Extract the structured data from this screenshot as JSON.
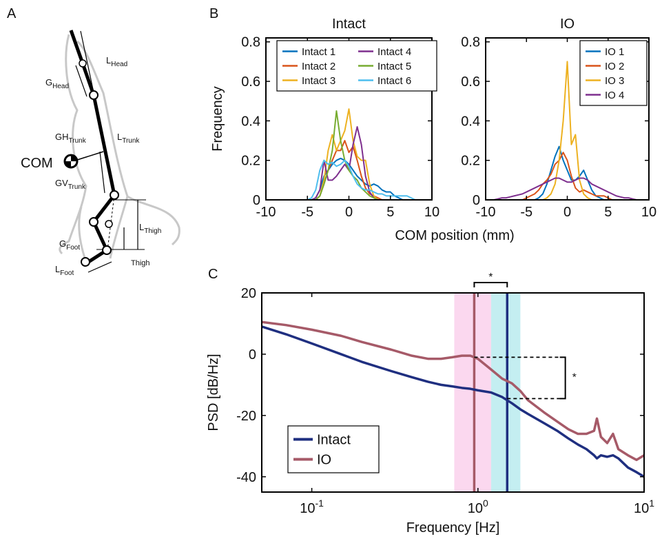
{
  "panels": [
    "A",
    "B",
    "C"
  ],
  "diagram": {
    "labels": [
      {
        "main": "L",
        "sub": "Head"
      },
      {
        "main": "G",
        "sub": "Head"
      },
      {
        "main": "L",
        "sub": "Trunk"
      },
      {
        "main": "GH",
        "sub": "Trunk"
      },
      {
        "main": "COM"
      },
      {
        "main": "GV",
        "sub": "Trunk"
      },
      {
        "main": "L",
        "sub": "Thigh"
      },
      {
        "main": "G",
        "sub": "Foot"
      },
      {
        "main": "L",
        "sub": "Foot"
      },
      {
        "main": "Thigh"
      }
    ]
  },
  "chart_data": [
    {
      "type": "line",
      "title": "Intact",
      "ylabel": "Frequency",
      "xlabel": "COM position (mm)",
      "x": [
        -5,
        -4.5,
        -4,
        -3.5,
        -3,
        -2.5,
        -2,
        -1.5,
        -1,
        -0.5,
        0,
        0.5,
        1,
        1.5,
        2,
        2.5,
        3,
        3.5,
        4,
        4.5,
        5,
        5.5,
        6,
        6.5,
        7,
        7.5,
        8
      ],
      "series": [
        {
          "name": "Intact 1",
          "color": "#0072bd",
          "values": [
            0,
            0,
            0.01,
            0.05,
            0.12,
            0.15,
            0.18,
            0.2,
            0.21,
            0.2,
            0.18,
            0.15,
            0.12,
            0.1,
            0.08,
            0.07,
            0.08,
            0.07,
            0.05,
            0.04,
            0.04,
            0.02,
            0.01,
            0,
            0,
            0,
            0
          ]
        },
        {
          "name": "Intact 2",
          "color": "#d95319",
          "values": [
            0,
            0,
            0,
            0.02,
            0.08,
            0.15,
            0.2,
            0.25,
            0.25,
            0.3,
            0.24,
            0.27,
            0.2,
            0.12,
            0.06,
            0.03,
            0.02,
            0.01,
            0,
            0,
            0,
            0,
            0,
            0,
            0,
            0,
            0
          ]
        },
        {
          "name": "Intact 3",
          "color": "#edb120",
          "values": [
            0,
            0,
            0,
            0.02,
            0.1,
            0.25,
            0.33,
            0.25,
            0.3,
            0.35,
            0.46,
            0.3,
            0.22,
            0.2,
            0.2,
            0.08,
            0.02,
            0,
            0,
            0,
            0,
            0,
            0,
            0,
            0,
            0,
            0
          ]
        },
        {
          "name": "Intact 4",
          "color": "#7e2f8e",
          "values": [
            0,
            0,
            0.01,
            0.05,
            0.2,
            0.1,
            0.1,
            0.12,
            0.15,
            0.18,
            0.15,
            0.28,
            0.37,
            0.28,
            0.12,
            0.04,
            0.01,
            0,
            0,
            0,
            0,
            0,
            0,
            0,
            0,
            0,
            0
          ]
        },
        {
          "name": "Intact 5",
          "color": "#77ac30",
          "values": [
            0,
            0,
            0,
            0.02,
            0.08,
            0.15,
            0.25,
            0.45,
            0.3,
            0.2,
            0.15,
            0.12,
            0.1,
            0.06,
            0.04,
            0.02,
            0.01,
            0,
            0,
            0,
            0,
            0,
            0,
            0,
            0,
            0,
            0
          ]
        },
        {
          "name": "Intact 6",
          "color": "#4dbeee",
          "values": [
            0,
            0.01,
            0.05,
            0.15,
            0.2,
            0.18,
            0.19,
            0.17,
            0.18,
            0.2,
            0.17,
            0.12,
            0.08,
            0.06,
            0.05,
            0.05,
            0.04,
            0.03,
            0.03,
            0.02,
            0.02,
            0.02,
            0.02,
            0.02,
            0.02,
            0.01,
            0
          ]
        }
      ],
      "xlim": [
        -10,
        10
      ],
      "xticks": [
        -10,
        -5,
        0,
        5,
        10
      ],
      "ylim": [
        0,
        0.82
      ],
      "yticks": [
        0,
        0.2,
        0.4,
        0.6,
        0.8
      ],
      "legend": "upper left",
      "legend_columns": 2
    },
    {
      "type": "line",
      "title": "IO",
      "x": [
        -9,
        -8.5,
        -8,
        -7.5,
        -7,
        -6.5,
        -6,
        -5.5,
        -5,
        -4.5,
        -4,
        -3.5,
        -3,
        -2.5,
        -2,
        -1.5,
        -1,
        -0.5,
        0,
        0.5,
        1,
        1.5,
        2,
        2.5,
        3,
        3.5,
        4,
        4.5,
        5,
        5.5,
        6,
        6.5,
        7,
        7.5,
        8,
        8.5,
        9
      ],
      "series": [
        {
          "name": "IO 1",
          "color": "#0072bd",
          "values": [
            0,
            0,
            0,
            0,
            0,
            0,
            0,
            0,
            0,
            0,
            0,
            0.01,
            0.03,
            0.08,
            0.15,
            0.22,
            0.27,
            0.2,
            0.15,
            0.1,
            0.1,
            0.12,
            0.15,
            0.1,
            0.05,
            0.02,
            0.01,
            0,
            0,
            0,
            0,
            0,
            0,
            0,
            0,
            0,
            0
          ]
        },
        {
          "name": "IO 2",
          "color": "#d95319",
          "values": [
            0,
            0,
            0,
            0,
            0,
            0,
            0,
            0,
            0.01,
            0.02,
            0.03,
            0.05,
            0.08,
            0.1,
            0.13,
            0.18,
            0.2,
            0.24,
            0.2,
            0.12,
            0.06,
            0.04,
            0.05,
            0.04,
            0.03,
            0.02,
            0.02,
            0.02,
            0.01,
            0,
            0,
            0,
            0,
            0,
            0,
            0,
            0
          ]
        },
        {
          "name": "IO 3",
          "color": "#edb120",
          "values": [
            0,
            0,
            0,
            0,
            0,
            0,
            0,
            0,
            0,
            0,
            0,
            0,
            0,
            0.01,
            0.03,
            0.08,
            0.2,
            0.4,
            0.7,
            0.28,
            0.33,
            0.1,
            0.03,
            0.01,
            0,
            0,
            0,
            0,
            0,
            0,
            0,
            0,
            0,
            0,
            0,
            0,
            0
          ]
        },
        {
          "name": "IO 4",
          "color": "#7e2f8e",
          "values": [
            0,
            0.005,
            0.01,
            0.01,
            0.015,
            0.02,
            0.025,
            0.03,
            0.04,
            0.05,
            0.06,
            0.07,
            0.08,
            0.09,
            0.1,
            0.11,
            0.11,
            0.1,
            0.09,
            0.09,
            0.1,
            0.11,
            0.11,
            0.1,
            0.08,
            0.07,
            0.06,
            0.05,
            0.04,
            0.03,
            0.02,
            0.015,
            0.01,
            0.01,
            0.005,
            0,
            0
          ]
        }
      ],
      "xlim": [
        -10,
        10
      ],
      "xticks": [
        -10,
        -5,
        0,
        5,
        10
      ],
      "ylim": [
        0,
        0.82
      ],
      "yticks": [
        0,
        0.2,
        0.4,
        0.6,
        0.8
      ],
      "legend": "upper right",
      "legend_columns": 1
    },
    {
      "type": "line",
      "xlabel": "Frequency [Hz]",
      "ylabel": "PSD [dB/Hz]",
      "xscale": "log",
      "x": [
        0.05,
        0.07,
        0.1,
        0.15,
        0.2,
        0.3,
        0.4,
        0.5,
        0.6,
        0.7,
        0.8,
        0.9,
        1,
        1.2,
        1.4,
        1.6,
        1.8,
        2,
        2.5,
        3,
        3.5,
        4,
        4.5,
        5,
        5.2,
        5.5,
        6,
        6.5,
        7,
        8,
        9,
        10
      ],
      "series": [
        {
          "name": "Intact",
          "color": "#1f2f80",
          "values": [
            9,
            6.5,
            3.5,
            0,
            -2.5,
            -5.5,
            -7.5,
            -9,
            -10,
            -10.5,
            -11,
            -11.3,
            -11.8,
            -12.5,
            -14,
            -16,
            -18,
            -19.5,
            -22.5,
            -25,
            -27.5,
            -29.5,
            -31,
            -33,
            -34,
            -33,
            -33.5,
            -33,
            -34,
            -37,
            -38.5,
            -40
          ]
        },
        {
          "name": "IO",
          "color": "#a65a68",
          "values": [
            10.5,
            9.5,
            8,
            6,
            4,
            1.5,
            -0.5,
            -1.5,
            -1.5,
            -1,
            -0.5,
            -0.5,
            -1.5,
            -5,
            -8,
            -9.5,
            -12,
            -15,
            -19,
            -22,
            -24.5,
            -26,
            -26,
            -25,
            -21,
            -27,
            -29,
            -26,
            -31,
            -33,
            -34.5,
            -33
          ]
        }
      ],
      "bands": [
        {
          "xlim": [
            0.72,
            1.2
          ],
          "color": "#fbd8ef"
        },
        {
          "xlim": [
            1.2,
            1.8
          ],
          "color": "#c4eef1"
        }
      ],
      "vlines": [
        {
          "x": 0.95,
          "color": "#a65a68"
        },
        {
          "x": 1.5,
          "color": "#1f2f80"
        }
      ],
      "hlines": [
        {
          "y": -1,
          "xlim": [
            0.95,
            3.2
          ]
        },
        {
          "y": -14.5,
          "xlim": [
            1.5,
            3.2
          ]
        }
      ],
      "annotations": [
        "*",
        "*"
      ],
      "xlim": [
        0.05,
        10
      ],
      "xticks": [
        {
          "value": 0.1,
          "label": "10",
          "exponent": "-1"
        },
        {
          "value": 1,
          "label": "10",
          "exponent": "0"
        },
        {
          "value": 10,
          "label": "10",
          "exponent": "1"
        }
      ],
      "ylim": [
        -45,
        20
      ],
      "yticks": [
        -40,
        -20,
        0,
        20
      ],
      "legend": "lower left",
      "legend_columns": 1
    }
  ]
}
